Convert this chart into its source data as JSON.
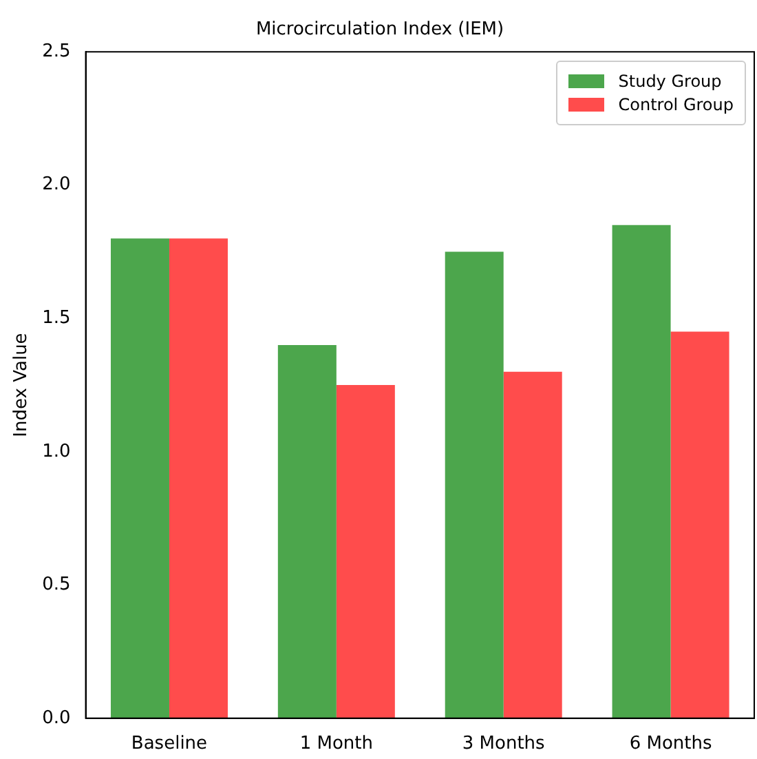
{
  "chart_data": {
    "type": "bar",
    "title": "Microcirculation Index (IEM)",
    "ylabel": "Index Value",
    "categories": [
      "Baseline",
      "1 Month",
      "3 Months",
      "6 Months"
    ],
    "series": [
      {
        "name": "Study Group",
        "color": "#4ca64c",
        "values": [
          1.8,
          1.4,
          1.75,
          1.85
        ]
      },
      {
        "name": "Control Group",
        "color": "#ff4c4c",
        "values": [
          1.8,
          1.25,
          1.3,
          1.45
        ]
      }
    ],
    "ylim": [
      0,
      2.5
    ],
    "yticks": [
      {
        "value": 0,
        "label": "0.0"
      },
      {
        "value": 0.5,
        "label": "0.5"
      },
      {
        "value": 1,
        "label": "1.0"
      },
      {
        "value": 1.5,
        "label": "1.5"
      },
      {
        "value": 2,
        "label": "2.0"
      },
      {
        "value": 2.5,
        "label": "2.5"
      }
    ],
    "grid": false,
    "legend": "top right"
  }
}
